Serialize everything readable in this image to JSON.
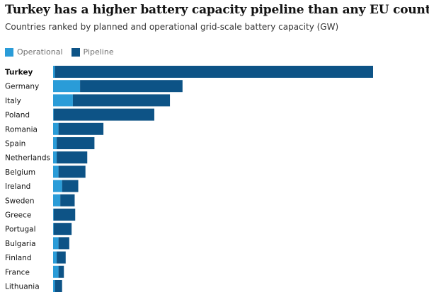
{
  "title": "Turkey has a higher battery capacity pipeline than any EU country",
  "subtitle": "Countries ranked by planned and operational grid-scale battery capacity (GW)",
  "colors": {
    "operational": "#2a9cd8",
    "pipeline": "#0d5386",
    "text": "#121212"
  },
  "chart_data": {
    "type": "bar",
    "orientation": "horizontal",
    "stacked": true,
    "title": "Turkey has a higher battery capacity pipeline than any EU country",
    "subtitle": "Countries ranked by planned and operational grid-scale battery capacity (GW)",
    "legend": {
      "placement": "top-left",
      "entries": [
        "Operational",
        "Pipeline"
      ]
    },
    "highlighted_category": "Turkey",
    "grid": false,
    "categories": [
      "Turkey",
      "Germany",
      "Italy",
      "Poland",
      "Romania",
      "Spain",
      "Netherlands",
      "Belgium",
      "Ireland",
      "Sweden",
      "Greece",
      "Portugal",
      "Bulgaria",
      "Finland",
      "France",
      "Lithuania"
    ],
    "series": [
      {
        "name": "Operational",
        "values": [
          0.1,
          1.5,
          1.1,
          0.03,
          0.3,
          0.2,
          0.2,
          0.3,
          0.5,
          0.4,
          0.03,
          0.03,
          0.3,
          0.2,
          0.3,
          0.1
        ]
      },
      {
        "name": "Pipeline",
        "values": [
          17.7,
          5.7,
          5.4,
          5.6,
          2.5,
          2.1,
          1.7,
          1.5,
          0.9,
          0.8,
          1.2,
          1.0,
          0.6,
          0.5,
          0.3,
          0.4
        ]
      }
    ],
    "xlim": [
      0,
      18
    ]
  }
}
